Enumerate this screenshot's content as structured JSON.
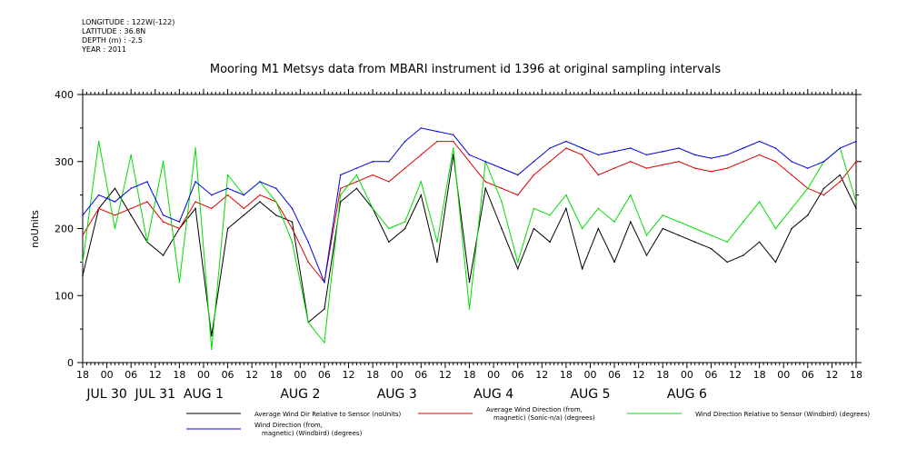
{
  "metadata": {
    "longitude": "LONGITUDE : 122W(-122)",
    "latitude": "LATITUDE : 36.8N",
    "depth": "DEPTH (m) : -2.5",
    "year": "YEAR : 2011"
  },
  "chart_data": {
    "type": "line",
    "title": "Mooring M1 Metsys data from MBARI instrument id 1396 at original sampling intervals",
    "ylabel": "noUnits",
    "xlabel": "",
    "ylim": [
      0,
      400
    ],
    "y_ticks": [
      0,
      100,
      200,
      300,
      400
    ],
    "x_range_hours": [
      0,
      192
    ],
    "x_tick_labels": [
      "18",
      "00",
      "06",
      "12",
      "18",
      "00",
      "06",
      "12",
      "18",
      "00",
      "06",
      "12",
      "18",
      "00",
      "06",
      "12",
      "18",
      "00",
      "06",
      "12",
      "18",
      "00",
      "06",
      "12",
      "18",
      "00",
      "06",
      "12",
      "18",
      "00",
      "06",
      "12",
      "18"
    ],
    "date_labels": [
      {
        "text": "JUL 30",
        "hour": 6
      },
      {
        "text": "JUL 31",
        "hour": 18
      },
      {
        "text": "AUG  1",
        "hour": 30
      },
      {
        "text": "AUG  2",
        "hour": 54
      },
      {
        "text": "AUG  3",
        "hour": 78
      },
      {
        "text": "AUG  4",
        "hour": 102
      },
      {
        "text": "AUG  5",
        "hour": 126
      },
      {
        "text": "AUG  6",
        "hour": 150
      }
    ],
    "series": [
      {
        "name": "Average Wind Dir Relative to Sensor (noUnits)",
        "color": "#000000",
        "x": [
          0,
          4,
          8,
          12,
          16,
          20,
          24,
          28,
          32,
          36,
          40,
          44,
          48,
          52,
          56,
          60,
          64,
          68,
          72,
          76,
          80,
          84,
          88,
          92,
          96,
          100,
          104,
          108,
          112,
          116,
          120,
          124,
          128,
          132,
          136,
          140,
          144,
          148,
          152,
          156,
          160,
          164,
          168,
          172,
          176,
          180,
          184,
          188,
          192
        ],
        "values": [
          130,
          230,
          260,
          220,
          180,
          160,
          200,
          230,
          40,
          200,
          220,
          240,
          220,
          210,
          60,
          80,
          240,
          260,
          230,
          180,
          200,
          250,
          150,
          310,
          120,
          260,
          200,
          140,
          200,
          180,
          230,
          140,
          200,
          150,
          210,
          160,
          200,
          190,
          180,
          170,
          150,
          160,
          180,
          150,
          200,
          220,
          260,
          280,
          230
        ]
      },
      {
        "name": "Average Wind Direction (from, magnetic) (Sonic-n/a) (degrees)",
        "color": "#e00000",
        "x": [
          0,
          4,
          8,
          12,
          16,
          20,
          24,
          28,
          32,
          36,
          40,
          44,
          48,
          52,
          56,
          60,
          64,
          68,
          72,
          76,
          80,
          84,
          88,
          92,
          96,
          100,
          104,
          108,
          112,
          116,
          120,
          124,
          128,
          132,
          136,
          140,
          144,
          148,
          152,
          156,
          160,
          164,
          168,
          172,
          176,
          180,
          184,
          188,
          192
        ],
        "values": [
          190,
          230,
          220,
          230,
          240,
          210,
          200,
          240,
          230,
          250,
          230,
          250,
          240,
          200,
          150,
          120,
          260,
          270,
          280,
          270,
          290,
          310,
          330,
          330,
          300,
          270,
          260,
          250,
          280,
          300,
          320,
          310,
          280,
          290,
          300,
          290,
          295,
          300,
          290,
          285,
          290,
          300,
          310,
          300,
          280,
          260,
          250,
          270,
          300
        ]
      },
      {
        "name": "Wind Direction Relative to Sensor (Windbird) (degrees)",
        "color": "#00dd00",
        "x": [
          0,
          4,
          8,
          12,
          16,
          20,
          24,
          28,
          32,
          36,
          40,
          44,
          48,
          52,
          56,
          60,
          64,
          68,
          72,
          76,
          80,
          84,
          88,
          92,
          96,
          100,
          104,
          108,
          112,
          116,
          120,
          124,
          128,
          132,
          136,
          140,
          144,
          148,
          152,
          156,
          160,
          164,
          168,
          172,
          176,
          180,
          184,
          188,
          192
        ],
        "values": [
          150,
          330,
          200,
          310,
          180,
          300,
          120,
          320,
          20,
          280,
          250,
          270,
          240,
          180,
          60,
          30,
          250,
          280,
          230,
          200,
          210,
          270,
          180,
          320,
          80,
          300,
          240,
          150,
          230,
          220,
          250,
          200,
          230,
          210,
          250,
          190,
          220,
          210,
          200,
          190,
          180,
          210,
          240,
          200,
          230,
          260,
          300,
          320,
          240
        ]
      },
      {
        "name": "Wind Direction (from, magnetic) (Windbird) (degrees)",
        "color": "#0000e0",
        "x": [
          0,
          4,
          8,
          12,
          16,
          20,
          24,
          28,
          32,
          36,
          40,
          44,
          48,
          52,
          56,
          60,
          64,
          68,
          72,
          76,
          80,
          84,
          88,
          92,
          96,
          100,
          104,
          108,
          112,
          116,
          120,
          124,
          128,
          132,
          136,
          140,
          144,
          148,
          152,
          156,
          160,
          164,
          168,
          172,
          176,
          180,
          184,
          188,
          192
        ],
        "values": [
          220,
          250,
          240,
          260,
          270,
          220,
          210,
          270,
          250,
          260,
          250,
          270,
          260,
          230,
          180,
          120,
          280,
          290,
          300,
          300,
          330,
          350,
          345,
          340,
          310,
          300,
          290,
          280,
          300,
          320,
          330,
          320,
          310,
          315,
          320,
          310,
          315,
          320,
          310,
          305,
          310,
          320,
          330,
          320,
          300,
          290,
          300,
          320,
          330
        ]
      }
    ],
    "legend": [
      {
        "label_line1": "Average Wind Dir Relative to Sensor (noUnits)",
        "label_line2": "",
        "color": "#000000"
      },
      {
        "label_line1": "Average Wind Direction (from,",
        "label_line2": "magnetic) (Sonic-n/a) (degrees)",
        "color": "#e00000"
      },
      {
        "label_line1": "Wind Direction Relative to Sensor (Windbird) (degrees)",
        "label_line2": "",
        "color": "#00dd00"
      },
      {
        "label_line1": "Wind Direction (from,",
        "label_line2": "magnetic) (Windbird) (degrees)",
        "color": "#0000e0"
      }
    ]
  }
}
